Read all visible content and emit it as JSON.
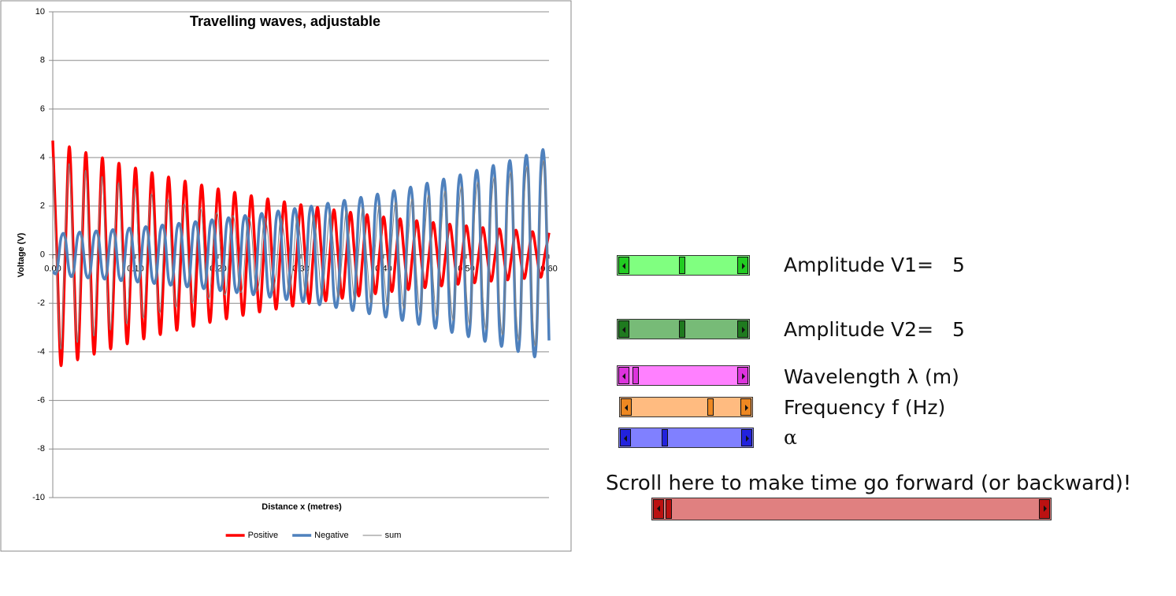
{
  "chart_data": {
    "type": "line",
    "title": "Travelling waves, adjustable",
    "x_label": "Distance x (metres)",
    "y_label": "Voltage (V)",
    "xlim": [
      0,
      0.6
    ],
    "ylim": [
      -10,
      10
    ],
    "xticks": [
      {
        "value": 0,
        "label": "0.00"
      },
      {
        "value": 0.1,
        "label": "0.10"
      },
      {
        "value": 0.2,
        "label": "0.20"
      },
      {
        "value": 0.3,
        "label": "0.30"
      },
      {
        "value": 0.4,
        "label": "0.40"
      },
      {
        "value": 0.5,
        "label": "0.50"
      },
      {
        "value": 0.6,
        "label": "0.60"
      }
    ],
    "yticks": [
      -10,
      -8,
      -6,
      -4,
      -2,
      0,
      2,
      4,
      6,
      8,
      10
    ],
    "grid": true,
    "legend": "bottom",
    "x": [
      0,
      0.005,
      0.01,
      0.015,
      0.02,
      0.025,
      0.03,
      0.035,
      0.04,
      0.045,
      0.05,
      0.055,
      0.06,
      0.065,
      0.07,
      0.075,
      0.08,
      0.085,
      0.09,
      0.095,
      0.1,
      0.105,
      0.11,
      0.115,
      0.12,
      0.125,
      0.13,
      0.135,
      0.14,
      0.145,
      0.15,
      0.155,
      0.16,
      0.165,
      0.17,
      0.175,
      0.18,
      0.185,
      0.19,
      0.195,
      0.2,
      0.205,
      0.21,
      0.215,
      0.22,
      0.225,
      0.23,
      0.235,
      0.24,
      0.245,
      0.25,
      0.255,
      0.26,
      0.265,
      0.27,
      0.275,
      0.28,
      0.285,
      0.29,
      0.295,
      0.3,
      0.305,
      0.31,
      0.315,
      0.32,
      0.325,
      0.33,
      0.335,
      0.34,
      0.345,
      0.35,
      0.355,
      0.36,
      0.365,
      0.37,
      0.375,
      0.38,
      0.385,
      0.39,
      0.395,
      0.4,
      0.405,
      0.41,
      0.415,
      0.42,
      0.425,
      0.43,
      0.435,
      0.44,
      0.445,
      0.45,
      0.455,
      0.46,
      0.465,
      0.47,
      0.475,
      0.48,
      0.485,
      0.49,
      0.495,
      0.5,
      0.505,
      0.51,
      0.515,
      0.52,
      0.525,
      0.53,
      0.535,
      0.54,
      0.545,
      0.55,
      0.555,
      0.56,
      0.565,
      0.57,
      0.575,
      0.58,
      0.585,
      0.59,
      0.595,
      0.6
    ],
    "series": [
      {
        "name": "Positive",
        "color": "#ff0000",
        "values": [
          4.7,
          0,
          -4.57,
          0,
          4.45,
          0,
          -4.33,
          0,
          4.21,
          0,
          -4.1,
          0,
          3.99,
          0,
          -3.88,
          0,
          3.77,
          0,
          -3.67,
          0,
          3.57,
          0,
          -3.47,
          0,
          3.38,
          0,
          -3.29,
          0,
          3.2,
          0,
          -3.11,
          0,
          3.03,
          0,
          -2.95,
          0,
          2.87,
          0,
          -2.79,
          0,
          2.71,
          0,
          -2.64,
          0,
          2.57,
          0,
          -2.5,
          0,
          2.43,
          0,
          -2.36,
          0,
          2.3,
          0,
          -2.24,
          0,
          2.18,
          0,
          -2.12,
          0,
          2.06,
          0,
          -2,
          0,
          1.95,
          0,
          -1.9,
          0,
          1.85,
          0,
          -1.8,
          0,
          1.75,
          0,
          -1.7,
          0,
          1.65,
          0,
          -1.61,
          0,
          1.56,
          0,
          -1.52,
          0,
          1.48,
          0,
          -1.44,
          0,
          1.4,
          0,
          -1.36,
          0,
          1.33,
          0,
          -1.29,
          0,
          1.26,
          0,
          -1.22,
          0,
          1.19,
          0,
          -1.16,
          0,
          1.12,
          0,
          -1.09,
          0,
          1.06,
          0,
          -1.04,
          0,
          1.01,
          0,
          -0.98,
          0,
          0.95,
          0,
          -0.93,
          0,
          0.9
        ]
      },
      {
        "name": "Negative",
        "color": "#4f81bd",
        "values": [
          -0.68,
          -0.69,
          0.7,
          0.71,
          -0.72,
          -0.73,
          0.74,
          0.75,
          -0.76,
          -0.77,
          0.78,
          0.79,
          -0.8,
          -0.81,
          0.82,
          0.83,
          -0.85,
          -0.86,
          0.87,
          0.88,
          -0.89,
          -0.91,
          0.92,
          0.93,
          -0.94,
          -0.96,
          0.97,
          0.98,
          -1,
          -1.01,
          1.03,
          1.04,
          -1.05,
          -1.07,
          1.08,
          1.1,
          -1.11,
          -1.13,
          1.14,
          1.16,
          -1.18,
          -1.19,
          1.21,
          1.23,
          -1.24,
          -1.26,
          1.28,
          1.3,
          -1.31,
          -1.33,
          1.35,
          1.37,
          -1.39,
          -1.41,
          1.43,
          1.45,
          -1.47,
          -1.49,
          1.51,
          1.53,
          -1.55,
          -1.57,
          1.59,
          1.61,
          -1.64,
          -1.66,
          1.68,
          1.71,
          -1.73,
          -1.75,
          1.78,
          1.8,
          -1.83,
          -1.85,
          1.88,
          1.9,
          -1.93,
          -1.96,
          1.98,
          2.01,
          -2.04,
          -2.07,
          2.1,
          2.12,
          -2.15,
          -2.18,
          2.21,
          2.24,
          -2.28,
          -2.31,
          2.34,
          2.37,
          -2.4,
          -2.44,
          2.47,
          2.51,
          -2.54,
          -2.58,
          2.61,
          2.65,
          -2.68,
          -2.72,
          2.76,
          2.8,
          -2.84,
          -2.87,
          2.92,
          2.96,
          -3,
          -3.04,
          3.08,
          3.12,
          -3.17,
          -3.21,
          3.25,
          3.3,
          -3.34,
          -3.39,
          3.44,
          3.49,
          -3.53
        ]
      },
      {
        "name": "sum",
        "color": "#808080",
        "values": [
          4.02,
          -0.69,
          -3.87,
          0.71,
          3.73,
          -0.73,
          -3.59,
          0.75,
          3.45,
          -0.77,
          -3.32,
          0.79,
          3.19,
          -0.81,
          -3.06,
          0.83,
          2.92,
          -0.86,
          -2.8,
          0.88,
          2.68,
          -0.91,
          -2.55,
          0.93,
          2.44,
          -0.96,
          -2.32,
          0.98,
          2.2,
          -1.01,
          -2.08,
          1.04,
          1.98,
          -1.07,
          -1.87,
          1.1,
          1.76,
          -1.13,
          -1.65,
          1.16,
          1.53,
          -1.19,
          -1.43,
          1.23,
          1.33,
          -1.26,
          -1.22,
          1.3,
          1.12,
          -1.33,
          -1.01,
          1.37,
          0.91,
          -1.41,
          -0.81,
          1.45,
          0.71,
          -1.49,
          -0.61,
          1.53,
          0.51,
          -1.57,
          -0.41,
          1.61,
          0.31,
          -1.66,
          -0.22,
          1.71,
          0.12,
          -1.75,
          -0.02,
          1.8,
          -0.08,
          -1.85,
          0.18,
          1.9,
          -0.28,
          -1.96,
          0.37,
          2.01,
          -0.48,
          -2.07,
          0.58,
          2.12,
          -0.67,
          -2.18,
          0.77,
          2.24,
          -0.88,
          -2.31,
          0.98,
          2.37,
          -1.07,
          -2.44,
          1.18,
          2.51,
          -1.28,
          -2.58,
          1.39,
          2.65,
          -1.49,
          -2.72,
          1.6,
          2.8,
          -1.72,
          -2.87,
          1.83,
          2.96,
          -1.94,
          -3.04,
          2.04,
          3.12,
          -2.16,
          -3.21,
          2.27,
          3.3,
          -2.39,
          -3.39,
          2.51,
          3.49,
          -2.63
        ]
      }
    ]
  },
  "controls": [
    {
      "label": "Amplitude V1=",
      "value": 5
    },
    {
      "label": "Amplitude V2=",
      "value": 5
    },
    {
      "label": "Wavelength λ (m)"
    },
    {
      "label": "Frequency f (Hz)"
    },
    {
      "label": "α"
    }
  ],
  "time_control": {
    "label": "Scroll here to make time go forward (or backward)!"
  }
}
